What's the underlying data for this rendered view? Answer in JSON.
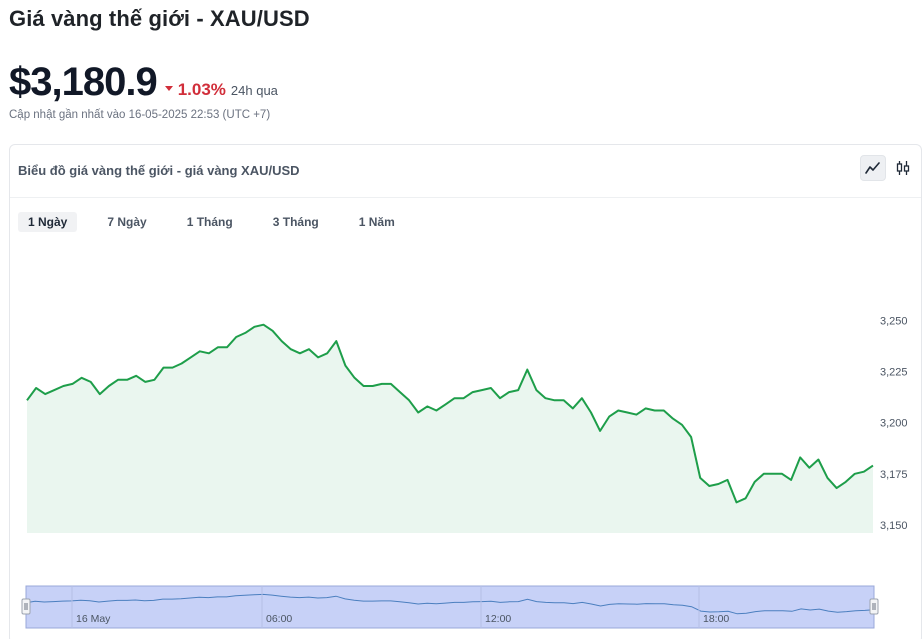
{
  "header": {
    "title": "Giá vàng thế giới - XAU/USD",
    "price": "$3,180.9",
    "change_pct": "1.03%",
    "change_period": "24h qua",
    "change_direction": "down",
    "updated": "Cập nhật gần nhất vào 16-05-2025 22:53 (UTC +7)"
  },
  "card": {
    "title": "Biểu đồ giá vàng thế giới - giá vàng XAU/USD",
    "view_toggles": [
      {
        "name": "line-chart-icon",
        "active": true
      },
      {
        "name": "candlestick-icon",
        "active": false
      }
    ],
    "tabs": [
      {
        "label": "1 Ngày",
        "active": true
      },
      {
        "label": "7 Ngày",
        "active": false
      },
      {
        "label": "1 Tháng",
        "active": false
      },
      {
        "label": "3 Tháng",
        "active": false
      },
      {
        "label": "1 Năm",
        "active": false
      }
    ]
  },
  "colors": {
    "line": "#1e9e4a",
    "area": "#eaf6ef",
    "down": "#d12e3a",
    "navigator_fill": "#c7d1f7",
    "navigator_line": "#4b7fbf"
  },
  "chart_data": {
    "type": "area",
    "y_axis": {
      "ticks": [
        3150,
        3175,
        3200,
        3225,
        3250
      ],
      "tick_labels": [
        "3,150",
        "3,175",
        "3,200",
        "3,225",
        "3,250"
      ],
      "ylim": [
        3146,
        3265
      ],
      "position": "right"
    },
    "grid": false,
    "series": [
      {
        "values": [
          3211,
          3217,
          3214,
          3216,
          3218,
          3219,
          3222,
          3220,
          3214,
          3218,
          3221,
          3221,
          3223,
          3220,
          3221,
          3227,
          3227,
          3229,
          3232,
          3235,
          3234,
          3237,
          3237,
          3242,
          3244,
          3247,
          3248,
          3245,
          3240,
          3236,
          3234,
          3236,
          3232,
          3234,
          3240,
          3228,
          3222,
          3218,
          3218,
          3219,
          3219,
          3215,
          3211,
          3205,
          3208,
          3206,
          3209,
          3212,
          3212,
          3215,
          3216,
          3217,
          3212,
          3215,
          3216,
          3226,
          3216,
          3212,
          3211,
          3211,
          3207,
          3212,
          3205,
          3196,
          3203,
          3206,
          3205,
          3204,
          3207,
          3206,
          3206,
          3202,
          3199,
          3193,
          3173,
          3169,
          3170,
          3172,
          3161,
          3163,
          3171,
          3175,
          3175,
          3175,
          3172,
          3183,
          3178,
          3182,
          3173,
          3168,
          3171,
          3175,
          3176,
          3179
        ]
      }
    ],
    "navigator": {
      "x_labels": [
        "16 May",
        "06:00",
        "12:00",
        "18:00"
      ]
    }
  }
}
